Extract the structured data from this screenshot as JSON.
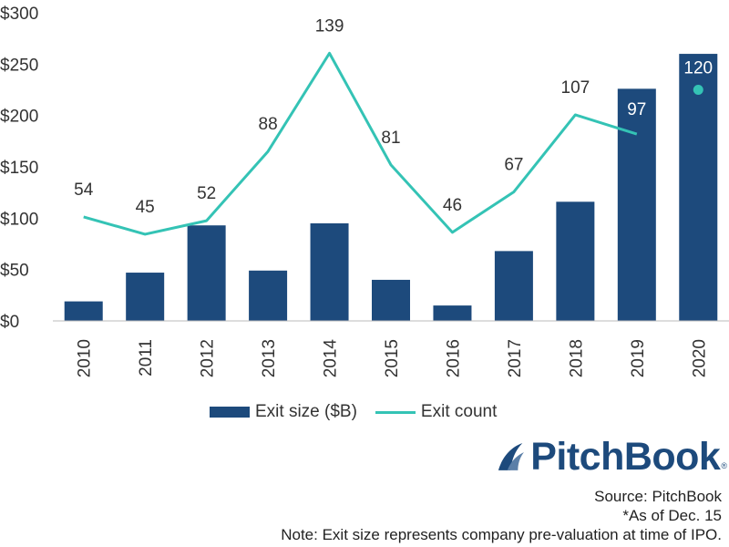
{
  "chart_data": {
    "type": "bar",
    "categories": [
      "2010",
      "2011",
      "2012",
      "2013",
      "2014",
      "2015",
      "2016",
      "2017",
      "2018",
      "2019",
      "2020"
    ],
    "series": [
      {
        "name": "Exit size ($B)",
        "type": "bar",
        "axis": "left",
        "color": "#1d4a7c",
        "values": [
          19,
          47,
          93,
          49,
          95,
          40,
          15,
          68,
          116,
          226,
          260
        ]
      },
      {
        "name": "Exit count",
        "type": "line",
        "axis": "right",
        "color": "#34c3b5",
        "values": [
          54,
          45,
          52,
          88,
          139,
          81,
          46,
          67,
          107,
          97,
          120
        ],
        "labels": [
          "54",
          "45",
          "52",
          "88",
          "139",
          "81",
          "46",
          "67",
          "107",
          "97",
          "120"
        ]
      }
    ],
    "yticks": [
      "$0",
      "$50",
      "$100",
      "$150",
      "$200",
      "$250",
      "$300"
    ],
    "ylim": [
      0,
      300
    ],
    "count_to_size_factor": 1.875,
    "grid": false,
    "legend_position": "bottom"
  },
  "legend": {
    "bar_label": "Exit size ($B)",
    "line_label": "Exit count"
  },
  "logo": {
    "text": "PitchBook",
    "reg": "®"
  },
  "footnotes": {
    "source": "Source: PitchBook",
    "asof": "*As of Dec. 15",
    "note": "Note: Exit size represents company pre-valuation at time of IPO."
  }
}
